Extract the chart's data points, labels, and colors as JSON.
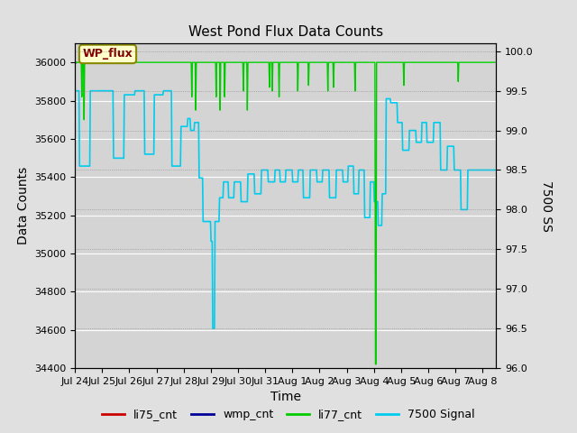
{
  "title": "West Pond Flux Data Counts",
  "xlabel": "Time",
  "ylabel_left": "Data Counts",
  "ylabel_right": "7500 SS",
  "annotation_text": "WP_flux",
  "ylim_left": [
    34400,
    36100
  ],
  "ylim_right": [
    96.0,
    100.1
  ],
  "yticks_left": [
    34400,
    34600,
    34800,
    35000,
    35200,
    35400,
    35600,
    35800,
    36000
  ],
  "yticks_right": [
    96.0,
    96.5,
    97.0,
    97.5,
    98.0,
    98.5,
    99.0,
    99.5,
    100.0
  ],
  "xtick_labels": [
    "Jul 24",
    "Jul 25",
    "Jul 26",
    "Jul 27",
    "Jul 28",
    "Jul 29",
    "Jul 30",
    "Jul 31",
    "Aug 1",
    "Aug 2",
    "Aug 3",
    "Aug 4",
    "Aug 5",
    "Aug 6",
    "Aug 7",
    "Aug 8"
  ],
  "bg_color": "#e0e0e0",
  "plot_bg_color": "#d4d4d4",
  "li75_color": "#cc0000",
  "wmp_color": "#000099",
  "li77_color": "#00cc00",
  "signal_color": "#00ccee",
  "legend_labels": [
    "li75_cnt",
    "wmp_cnt",
    "li77_cnt",
    "7500 Signal"
  ],
  "legend_colors": [
    "#cc0000",
    "#000099",
    "#00cc00",
    "#00ccee"
  ]
}
